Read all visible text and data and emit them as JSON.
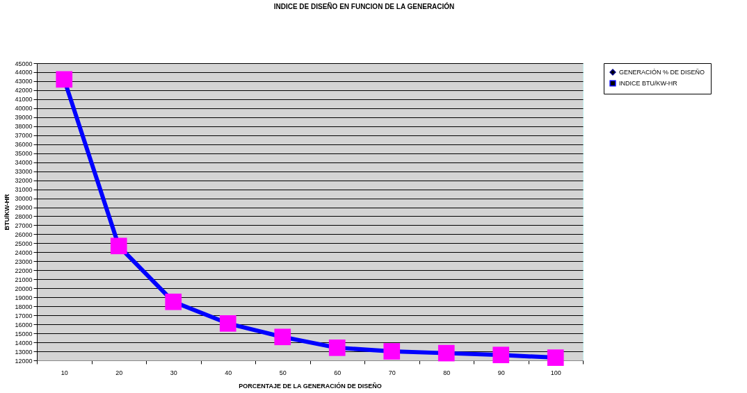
{
  "chart_data": {
    "type": "line",
    "title": "INDICE DE DISEÑO EN FUNCION DE LA GENERACIÓN",
    "xlabel": "PORCENTAJE DE LA GENERACIÓN DE DISEÑO",
    "ylabel": "BTU/KW-HR",
    "categories": [
      "10",
      "20",
      "30",
      "40",
      "50",
      "60",
      "70",
      "80",
      "90",
      "100"
    ],
    "series": [
      {
        "name": "GENERACIÓN % DE DISEÑO",
        "color": "#000080",
        "marker": "diamond",
        "values": [
          null,
          null,
          null,
          null,
          null,
          null,
          null,
          null,
          null,
          null
        ]
      },
      {
        "name": "INDICE BTU/KW-HR",
        "color": "#0000ff",
        "marker": "square",
        "colors": [
          "#ff00ff",
          "#ff00ff",
          "#ff00ff",
          "#ff00ff",
          "#ff00ff",
          "#ff00ff",
          "#ff00ff",
          "#ff00ff",
          "#ff00ff",
          "#ff00ff"
        ],
        "values": [
          43200,
          24700,
          18500,
          16100,
          14600,
          13400,
          13000,
          12800,
          12600,
          12300
        ]
      }
    ],
    "ylim": [
      12000,
      45000
    ],
    "yticks": [
      12000,
      13000,
      14000,
      15000,
      16000,
      17000,
      18000,
      19000,
      20000,
      21000,
      22000,
      23000,
      24000,
      25000,
      26000,
      27000,
      28000,
      29000,
      30000,
      31000,
      32000,
      33000,
      34000,
      35000,
      36000,
      37000,
      38000,
      39000,
      40000,
      41000,
      42000,
      43000,
      44000,
      45000
    ],
    "grid": "y",
    "legend": "right",
    "line_style": "solid"
  }
}
